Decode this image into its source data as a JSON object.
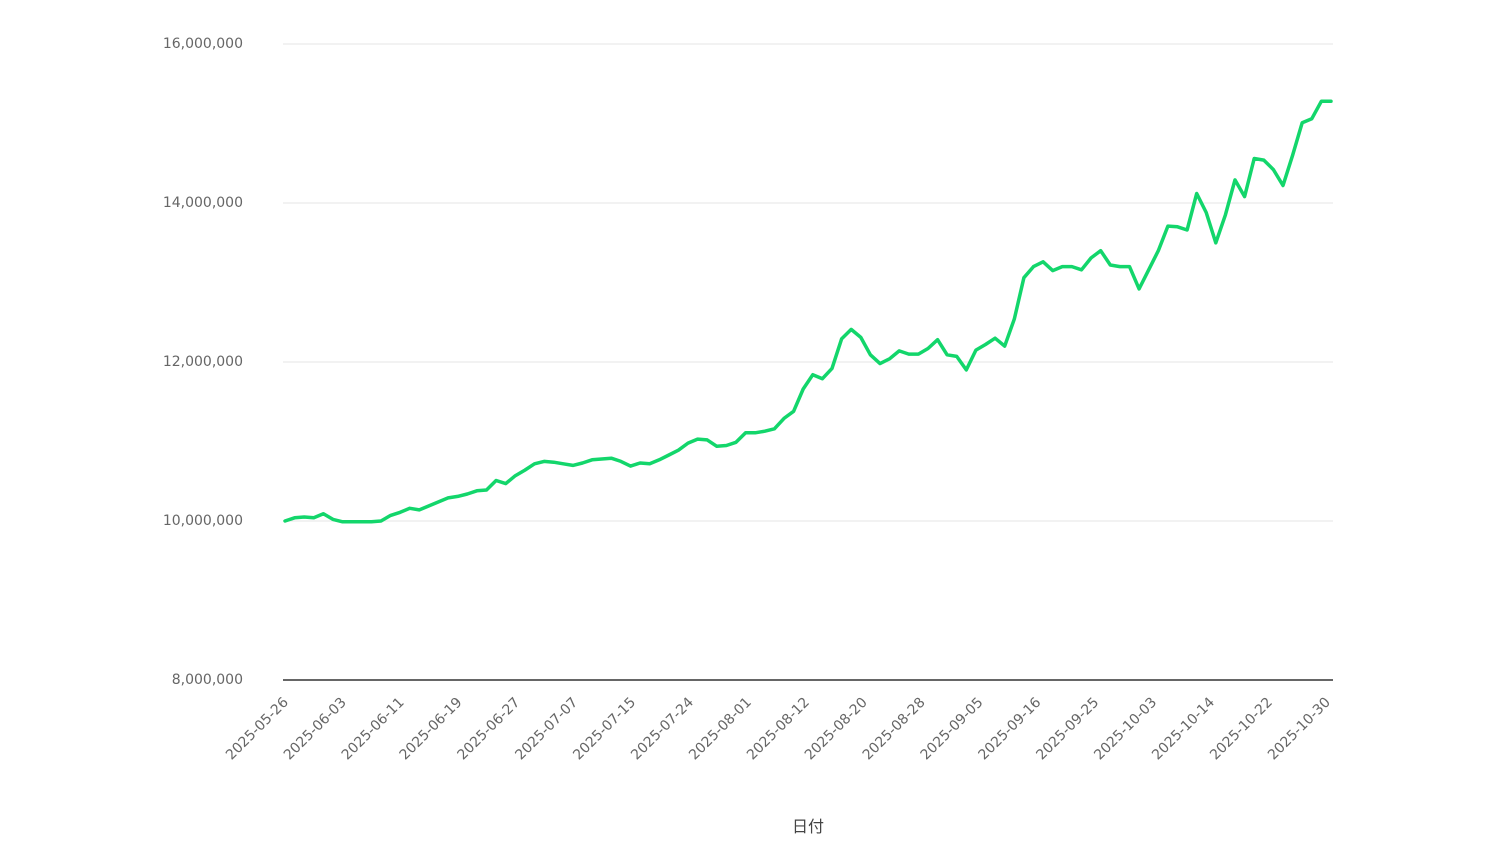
{
  "chart_data": {
    "type": "line",
    "title": "",
    "xlabel": "日付",
    "ylabel": "",
    "ylim": [
      8000000,
      16000000
    ],
    "yticks": [
      8000000,
      10000000,
      12000000,
      14000000,
      16000000
    ],
    "ytick_labels": [
      "8,000,000",
      "10,000,000",
      "12,000,000",
      "14,000,000",
      "16,000,000"
    ],
    "xtick_labels": [
      "2025-05-26",
      "2025-06-03",
      "2025-06-11",
      "2025-06-19",
      "2025-06-27",
      "2025-07-07",
      "2025-07-15",
      "2025-07-24",
      "2025-08-01",
      "2025-08-12",
      "2025-08-20",
      "2025-08-28",
      "2025-09-05",
      "2025-09-16",
      "2025-09-25",
      "2025-10-03",
      "2025-10-14",
      "2025-10-22",
      "2025-10-30"
    ],
    "grid": true,
    "legend": "none",
    "series": [
      {
        "color": "#13d66b",
        "values": [
          10000000,
          10040000,
          10050000,
          10040000,
          10090000,
          10020000,
          9990000,
          9990000,
          9990000,
          9990000,
          10000000,
          10070000,
          10110000,
          10160000,
          10140000,
          10190000,
          10240000,
          10290000,
          10310000,
          10340000,
          10380000,
          10390000,
          10510000,
          10470000,
          10570000,
          10640000,
          10720000,
          10750000,
          10740000,
          10720000,
          10700000,
          10730000,
          10770000,
          10780000,
          10790000,
          10750000,
          10690000,
          10730000,
          10720000,
          10770000,
          10830000,
          10890000,
          10980000,
          11030000,
          11020000,
          10940000,
          10950000,
          10990000,
          11110000,
          11110000,
          11130000,
          11160000,
          11290000,
          11380000,
          11660000,
          11840000,
          11790000,
          11920000,
          12290000,
          12410000,
          12310000,
          12090000,
          11980000,
          12040000,
          12140000,
          12100000,
          12100000,
          12170000,
          12280000,
          12090000,
          12070000,
          11900000,
          12150000,
          12220000,
          12300000,
          12200000,
          12540000,
          13060000,
          13200000,
          13260000,
          13150000,
          13200000,
          13200000,
          13160000,
          13310000,
          13400000,
          13220000,
          13200000,
          13200000,
          12920000,
          13160000,
          13400000,
          13710000,
          13700000,
          13660000,
          14120000,
          13880000,
          13500000,
          13850000,
          14290000,
          14080000,
          14560000,
          14540000,
          14420000,
          14220000,
          14600000,
          15010000,
          15060000,
          15280000,
          15280000
        ]
      }
    ]
  }
}
